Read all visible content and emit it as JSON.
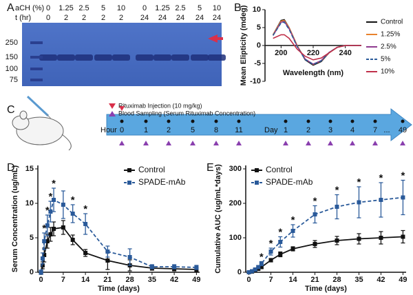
{
  "panel_labels": [
    "A",
    "B",
    "C",
    "D",
    "E"
  ],
  "gel": {
    "rows": [
      {
        "label": "aCH (%)",
        "values": [
          0,
          1.25,
          2.5,
          5,
          10,
          0,
          1.25,
          2.5,
          5,
          10
        ]
      },
      {
        "label": "t (hr)",
        "values": [
          0,
          2,
          2,
          2,
          2,
          24,
          24,
          24,
          24,
          24
        ]
      }
    ],
    "markers": [
      250,
      150,
      100,
      75
    ]
  },
  "timeline": {
    "legend": [
      "Rituximab Injection (10 mg/kg)",
      "Blood Sampling (Serum Rituximab Concentration)"
    ],
    "hour_label": "Hour",
    "hours": [
      0,
      1,
      2,
      5,
      8,
      11
    ],
    "day_label": "Day",
    "days": [
      1,
      2,
      3,
      4,
      7
    ],
    "ellipsis": "...",
    "last_day": 49
  },
  "chart_data": [
    {
      "type": "line",
      "xlabel": "Wavelength (nm)",
      "ylabel": "Mean Elipticity (mdeg)",
      "xlim": [
        190,
        250
      ],
      "ylim": [
        -10,
        10
      ],
      "xticks": [
        200,
        220,
        240
      ],
      "yticks": [
        -10,
        -5,
        0,
        5,
        10
      ],
      "x_axis_at_zero": true,
      "legend": "outside-right",
      "x": [
        195,
        200,
        202,
        205,
        210,
        215,
        220,
        225,
        230,
        235,
        240,
        245,
        250
      ],
      "series": [
        {
          "name": "Control",
          "color": "#111111",
          "values": [
            3,
            7,
            7.2,
            5,
            0,
            -4,
            -5.5,
            -4.5,
            -2,
            -0.5,
            0,
            0,
            0
          ]
        },
        {
          "name": "1.25%",
          "color": "#e8812c",
          "values": [
            3,
            6.8,
            7,
            5,
            0,
            -3.8,
            -5.3,
            -4.3,
            -2,
            -0.5,
            0,
            0,
            0
          ]
        },
        {
          "name": "2.5%",
          "color": "#8e3a8e",
          "values": [
            2.8,
            6.5,
            6.7,
            4.7,
            -0.2,
            -3.8,
            -5.2,
            -4.2,
            -1.9,
            -0.5,
            0,
            0,
            0
          ]
        },
        {
          "name": "5%",
          "color": "#2a5a9a",
          "dash": true,
          "values": [
            2.8,
            6.3,
            6.5,
            4.5,
            -0.3,
            -3.9,
            -5.3,
            -4.3,
            -1.9,
            -0.5,
            0,
            0,
            0
          ]
        },
        {
          "name": "10%",
          "color": "#c0304a",
          "values": [
            2,
            3,
            3,
            2,
            -1,
            -3,
            -4,
            -3.5,
            -2,
            -0.5,
            0,
            0,
            0
          ]
        }
      ]
    },
    {
      "type": "errorline",
      "xlabel": "Time (days)",
      "ylabel": "Serum Concentration (ug/mL)",
      "xlim": [
        -1,
        50
      ],
      "ylim": [
        0,
        15.5
      ],
      "xticks": [
        0,
        7,
        14,
        21,
        28,
        35,
        42,
        49
      ],
      "yticks": [
        0,
        5,
        10,
        15
      ],
      "legend": "upper-right",
      "x": [
        0,
        0.5,
        1,
        2,
        3,
        4,
        7,
        10,
        14,
        21,
        28,
        35,
        42,
        49
      ],
      "series": [
        {
          "name": "Control",
          "color": "#111111",
          "values": [
            0,
            1,
            2.5,
            4.5,
            5.5,
            6.3,
            6.5,
            4.7,
            2.8,
            1.7,
            1,
            0.6,
            0.5,
            0.4
          ],
          "errors": [
            0.3,
            0.5,
            1,
            1,
            1,
            1,
            1,
            0.7,
            0.5,
            1.3,
            0.8,
            0.3,
            0.3,
            0.3
          ]
        },
        {
          "name": "SPADE-mAb",
          "color": "#2a5a9a",
          "dash": true,
          "values": [
            0,
            2,
            4.5,
            6.8,
            8.8,
            10.5,
            9.8,
            8.5,
            7,
            3,
            2.2,
            0.8,
            0.8,
            0.7
          ],
          "errors": [
            0.3,
            0.8,
            1.2,
            1.5,
            1.5,
            1.7,
            2,
            1.3,
            1.5,
            0.8,
            1.2,
            0.3,
            0.3,
            0.3
          ]
        }
      ],
      "annotations": [
        {
          "text": "*",
          "x": 1
        },
        {
          "text": "*",
          "x": 2
        },
        {
          "text": "*",
          "x": 3
        },
        {
          "text": "*",
          "x": 4
        },
        {
          "text": "*",
          "x": 10
        },
        {
          "text": "*",
          "x": 14
        }
      ]
    },
    {
      "type": "errorline",
      "xlabel": "Time (days)",
      "ylabel": "Cumulative AUC (ug/mL*days)",
      "xlim": [
        -1,
        50
      ],
      "ylim": [
        0,
        310
      ],
      "xticks": [
        0,
        7,
        14,
        21,
        28,
        35,
        42,
        49
      ],
      "yticks": [
        0,
        100,
        200,
        300
      ],
      "legend": "upper-left",
      "x": [
        0,
        1,
        2,
        3,
        4,
        7,
        10,
        14,
        21,
        28,
        35,
        42,
        49
      ],
      "series": [
        {
          "name": "Control",
          "color": "#111111",
          "values": [
            0,
            2,
            5,
            10,
            15,
            35,
            52,
            68,
            82,
            92,
            97,
            100,
            103
          ],
          "errors": [
            1,
            2,
            3,
            3,
            4,
            5,
            7,
            6,
            10,
            12,
            15,
            18,
            18
          ]
        },
        {
          "name": "SPADE-mAb",
          "color": "#2a5a9a",
          "dash": true,
          "values": [
            0,
            3,
            8,
            15,
            25,
            60,
            88,
            120,
            168,
            190,
            203,
            210,
            217
          ],
          "errors": [
            1,
            2,
            3,
            4,
            6,
            10,
            15,
            18,
            25,
            35,
            45,
            50,
            50
          ]
        }
      ],
      "annotations": [
        {
          "text": "*",
          "x": 4
        },
        {
          "text": "*",
          "x": 7
        },
        {
          "text": "*",
          "x": 10
        },
        {
          "text": "*",
          "x": 14
        },
        {
          "text": "*",
          "x": 21
        },
        {
          "text": "*",
          "x": 28
        },
        {
          "text": "*",
          "x": 35
        },
        {
          "text": "*",
          "x": 42
        },
        {
          "text": "*",
          "x": 49
        }
      ]
    }
  ]
}
